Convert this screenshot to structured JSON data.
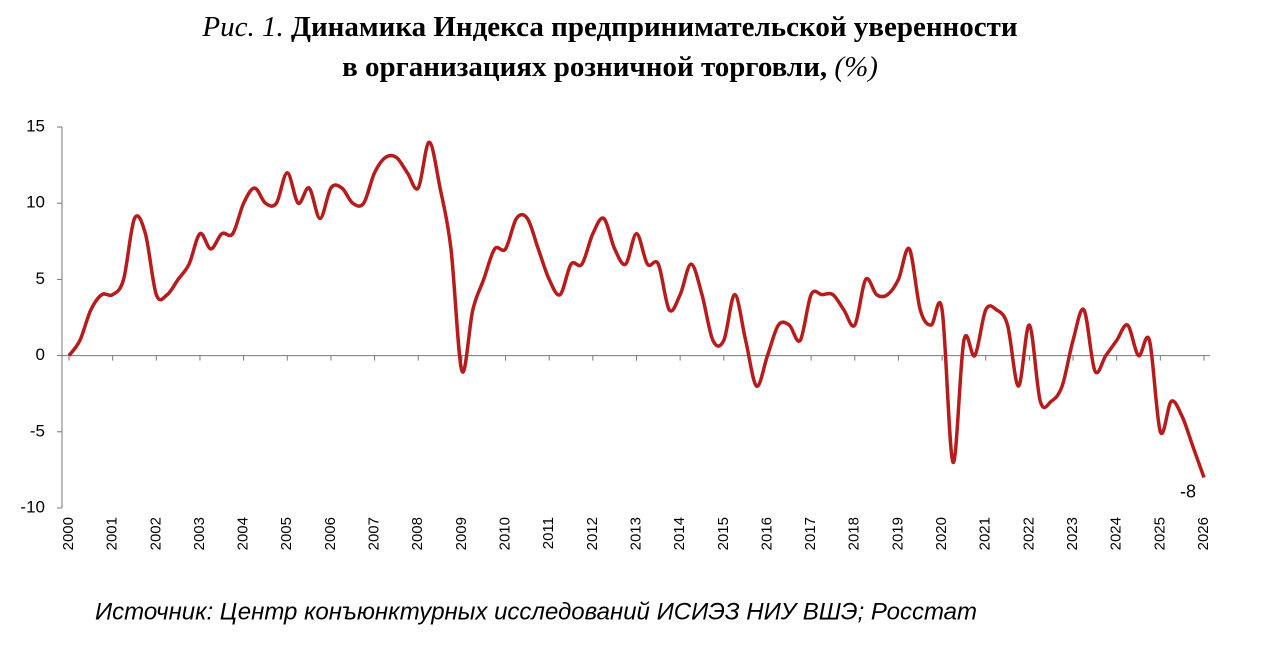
{
  "chart_data": {
    "type": "line",
    "figure_label": "Рис. 1.",
    "title_line1": "Динамика Индекса предпринимательской уверенности",
    "title_line2": "в организациях розничной торговли,",
    "unit": "(%)",
    "source": "Источник: Центр конъюнктурных исследований ИСИЭЗ НИУ ВШЭ; Росстат",
    "categories": [
      "2000",
      null,
      null,
      null,
      "2001",
      null,
      null,
      null,
      "2002",
      null,
      null,
      null,
      "2003",
      null,
      null,
      null,
      "2004",
      null,
      null,
      null,
      "2005",
      null,
      null,
      null,
      "2006",
      null,
      null,
      null,
      "2007",
      null,
      null,
      null,
      "2008",
      null,
      null,
      null,
      "2009",
      null,
      null,
      null,
      "2010",
      null,
      null,
      null,
      "2011",
      null,
      null,
      null,
      "2012",
      null,
      null,
      null,
      "2013",
      null,
      null,
      null,
      "2014",
      null,
      null,
      null,
      "2015",
      null,
      null,
      null,
      "2016",
      null,
      null,
      null,
      "2017",
      null,
      null,
      null,
      "2018",
      null,
      null,
      null,
      "2019",
      null,
      null,
      null,
      "2020",
      null,
      null,
      null,
      "2021",
      null,
      null,
      null,
      "2022",
      null,
      null,
      null,
      "2023",
      null,
      null,
      null,
      "2024",
      null,
      null,
      null,
      "2025",
      null,
      null,
      null,
      "2026"
    ],
    "series": [
      {
        "color": "#b71c1c",
        "values": [
          0,
          1,
          3,
          4,
          4,
          5,
          9,
          8,
          4,
          4,
          5,
          6,
          8,
          7,
          8,
          8,
          10,
          11,
          10,
          10,
          12,
          10,
          11,
          9,
          11,
          11,
          10,
          10,
          12,
          13,
          13,
          12,
          11,
          14,
          11,
          7,
          -1,
          3,
          5,
          7,
          7,
          9,
          9,
          7,
          5,
          4,
          6,
          6,
          8,
          9,
          7,
          6,
          8,
          6,
          6,
          3,
          4,
          6,
          4,
          1,
          1,
          4,
          1,
          -2,
          0,
          2,
          2,
          1,
          4,
          4,
          4,
          3,
          2,
          5,
          4,
          4,
          5,
          7,
          3,
          2,
          3,
          -7,
          1,
          0,
          3,
          3,
          2,
          -2,
          2,
          -3,
          -3,
          -2,
          1,
          3,
          -1,
          0,
          1,
          2,
          0,
          1,
          -5,
          -3,
          -4,
          -6,
          -8
        ]
      }
    ],
    "ylim": [
      -10,
      15
    ],
    "yticks": [
      15,
      10,
      5,
      0,
      -5,
      -10
    ]
  }
}
